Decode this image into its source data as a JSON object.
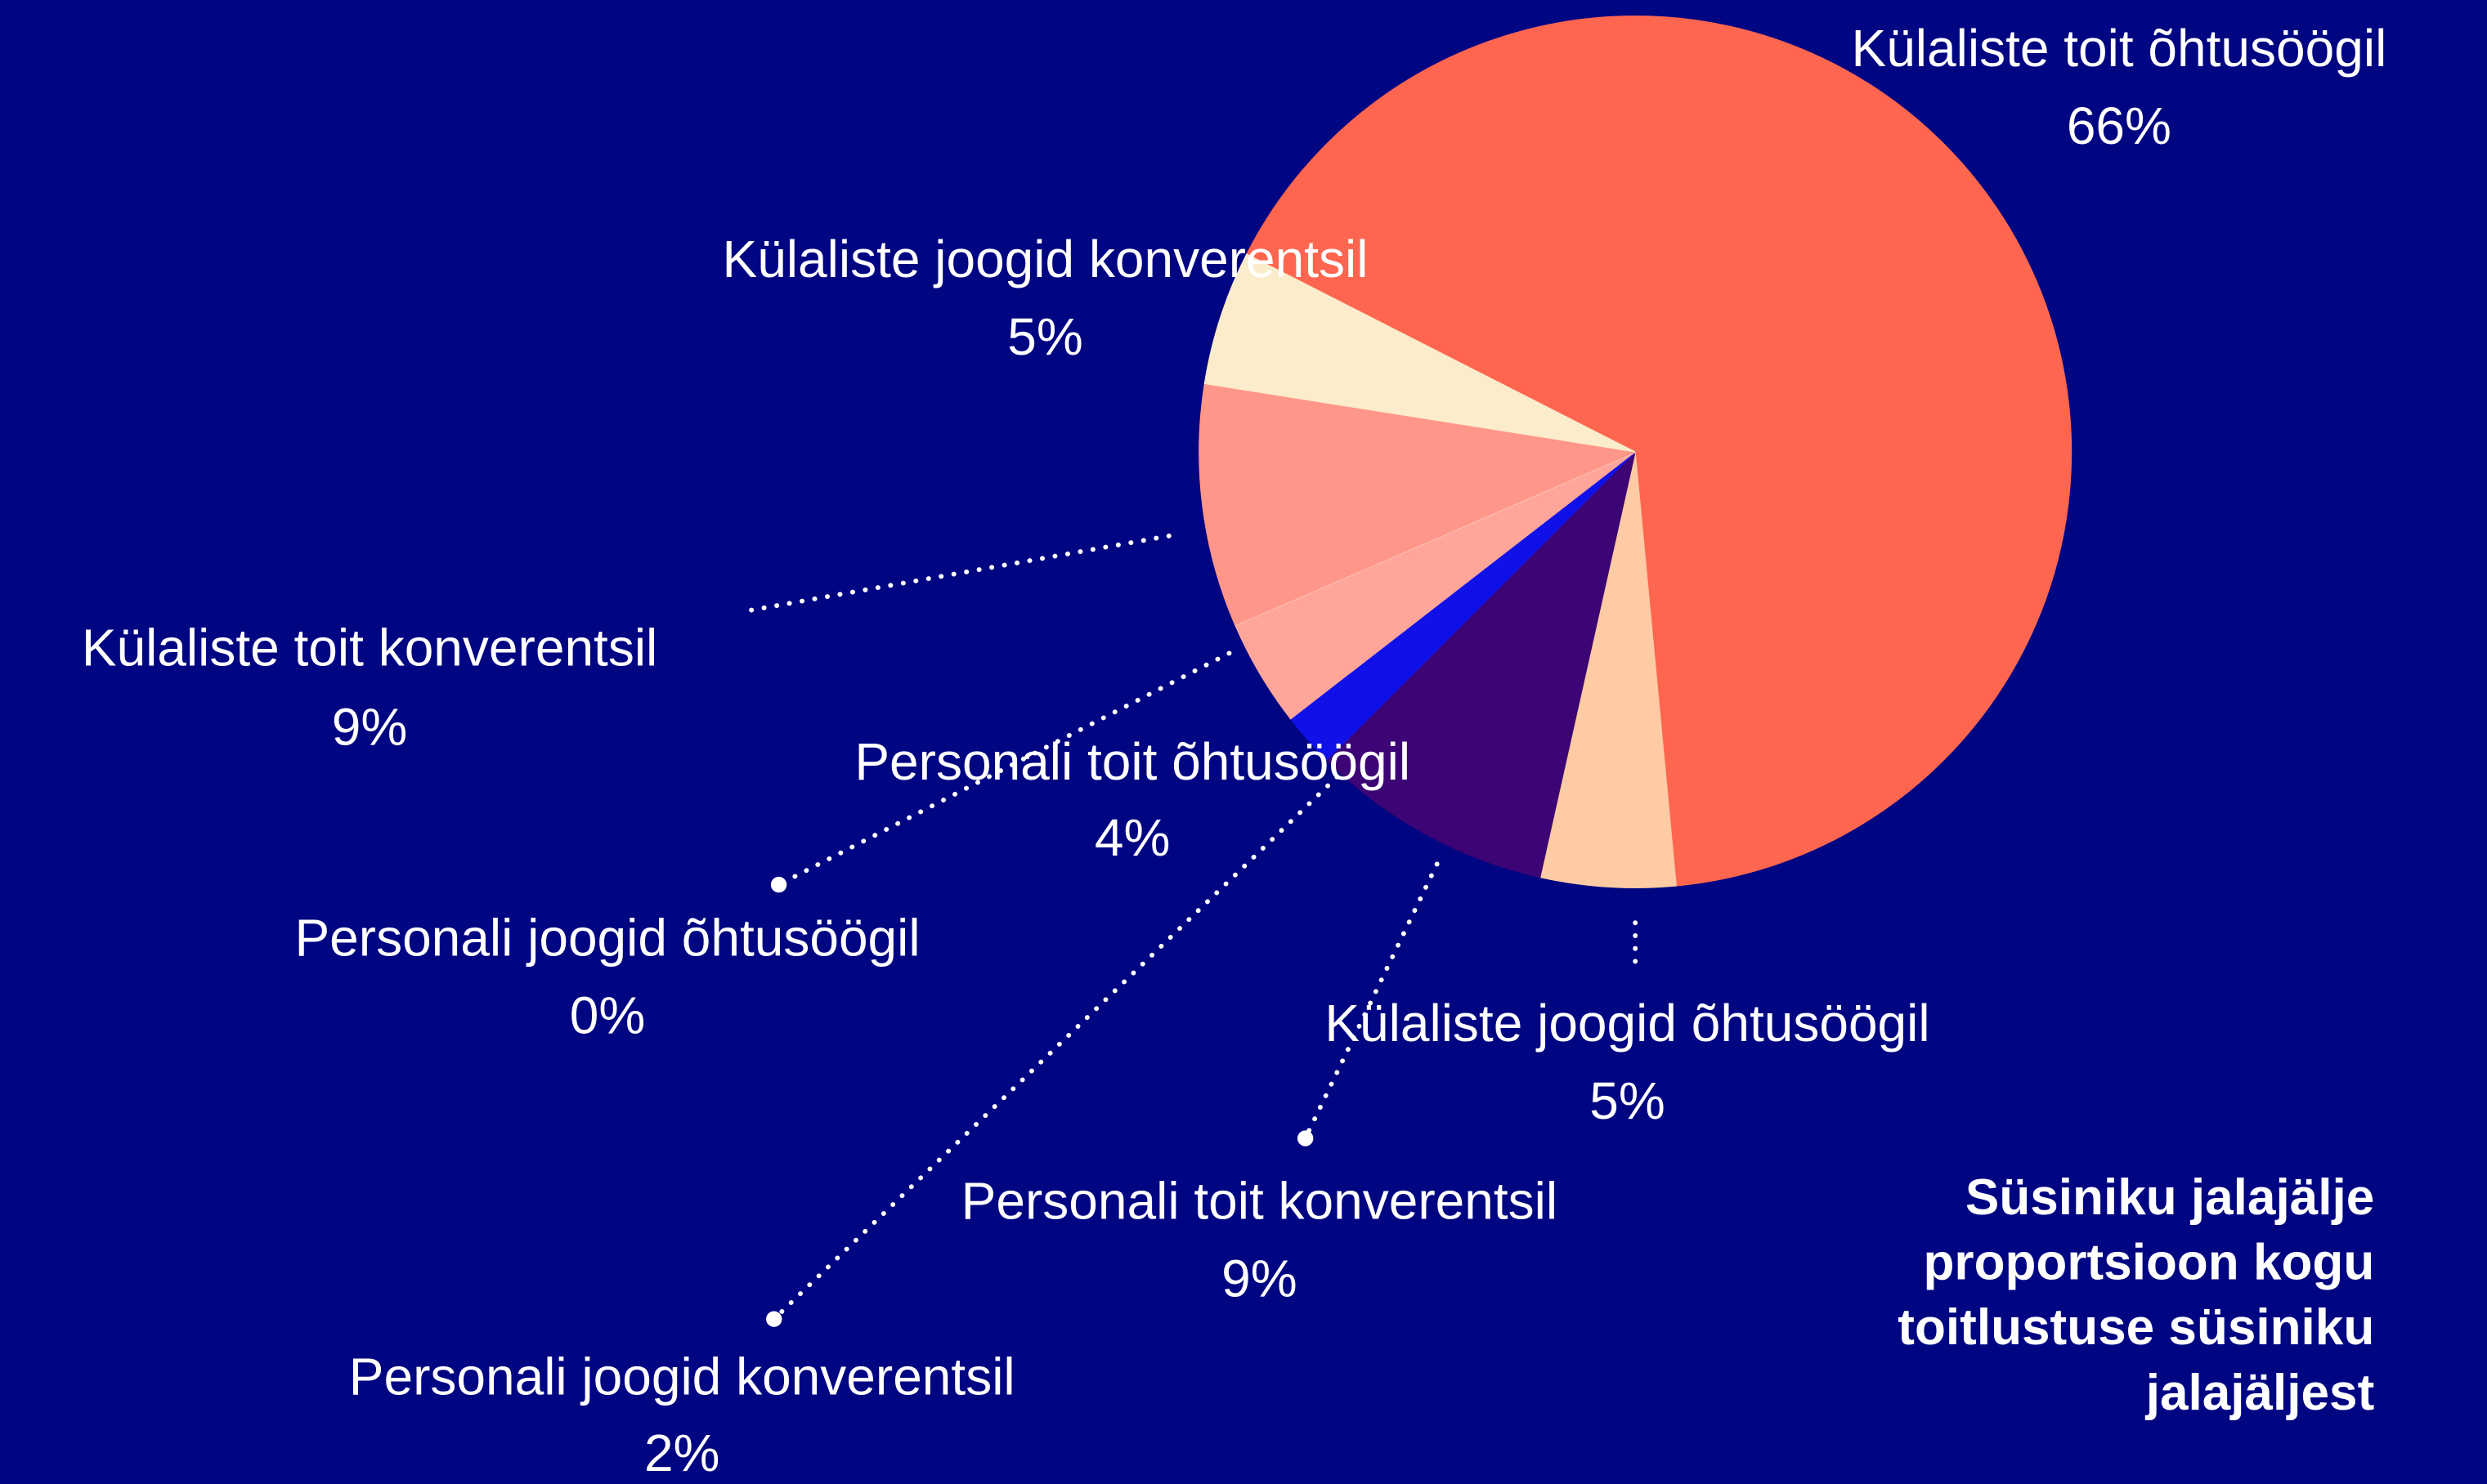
{
  "chart_data": {
    "type": "pie",
    "title": "Süsiniku jalajälje proportsioon kogu toitlustuse süsiniku jalajäljest",
    "categories": [
      "Külaliste toit õhtusöögil",
      "Külaliste joogid õhtusöögil",
      "Personali toit konverentsil",
      "Personali joogid konverentsil",
      "Personali toit õhtusöögil",
      "Personali joogid õhtusöögil",
      "Külaliste toit konverentsil",
      "Külaliste joogid konverentsil"
    ],
    "values": [
      66,
      5,
      9,
      2,
      4,
      0,
      9,
      5
    ],
    "value_labels": [
      "66%",
      "5%",
      "9%",
      "2%",
      "4%",
      "0%",
      "9%",
      "5%"
    ],
    "colors": [
      "#ff6650",
      "#ffcba4",
      "#3c0474",
      "#1010e8",
      "#ffa59a",
      "#ffc4b0",
      "#ff968a",
      "#fbeccb"
    ]
  }
}
